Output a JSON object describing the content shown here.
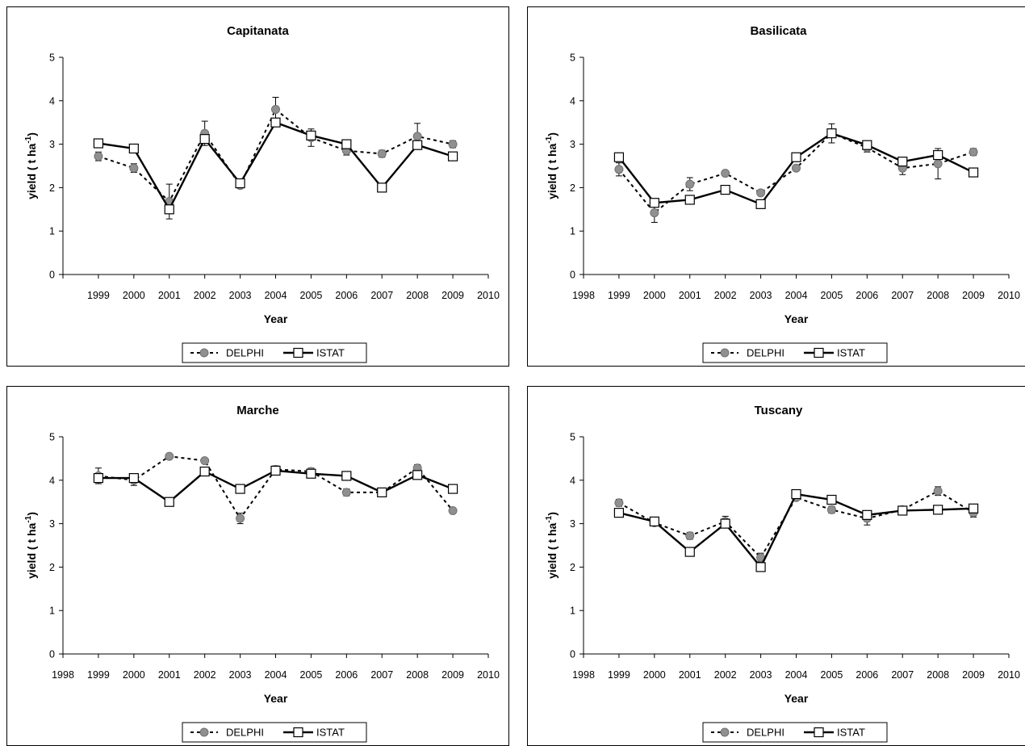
{
  "legend": {
    "delphi": "DELPHI",
    "istat": "ISTAT"
  },
  "chart_data": [
    {
      "type": "line",
      "title": "Capitanata",
      "xlabel": "Year",
      "ylabel": "yield ( t ha",
      "ylabel_sup": "-1",
      "ylabel_end": ")",
      "xlim": [
        1998,
        2010
      ],
      "ylim": [
        0,
        5
      ],
      "xticks": [
        1999,
        2000,
        2001,
        2002,
        2003,
        2004,
        2005,
        2006,
        2007,
        2008,
        2009,
        2010
      ],
      "yticks": [
        0,
        1,
        2,
        3,
        4,
        5
      ],
      "x": [
        1999,
        2000,
        2001,
        2002,
        2003,
        2004,
        2005,
        2006,
        2007,
        2008,
        2009
      ],
      "legend_position": "bottom",
      "grid": false,
      "series": [
        {
          "name": "DELPHI",
          "style": "dashed",
          "marker": "circle",
          "color": "#909090",
          "values": [
            2.72,
            2.45,
            1.68,
            3.25,
            2.05,
            3.8,
            3.15,
            2.85,
            2.78,
            3.18,
            3.0
          ],
          "err": [
            0.1,
            0.1,
            0.4,
            0.28,
            0.06,
            0.28,
            0.2,
            0.1,
            0.08,
            0.3,
            0.08
          ]
        },
        {
          "name": "ISTAT",
          "style": "solid",
          "marker": "square",
          "color": "#ffffff",
          "values": [
            3.02,
            2.9,
            1.5,
            3.12,
            2.1,
            3.5,
            3.2,
            3.0,
            2.0,
            2.98,
            2.72
          ]
        }
      ]
    },
    {
      "type": "line",
      "title": "Basilicata",
      "xlabel": "Year",
      "ylabel": "yield ( t ha",
      "ylabel_sup": "-1",
      "ylabel_end": ")",
      "xlim": [
        1998,
        2010
      ],
      "ylim": [
        0,
        5
      ],
      "xticks": [
        1998,
        1999,
        2000,
        2001,
        2002,
        2003,
        2004,
        2005,
        2006,
        2007,
        2008,
        2009,
        2010
      ],
      "yticks": [
        0,
        1,
        2,
        3,
        4,
        5
      ],
      "x": [
        1999,
        2000,
        2001,
        2002,
        2003,
        2004,
        2005,
        2006,
        2007,
        2008,
        2009
      ],
      "legend_position": "bottom",
      "grid": false,
      "series": [
        {
          "name": "DELPHI",
          "style": "dashed",
          "marker": "circle",
          "color": "#909090",
          "values": [
            2.42,
            1.42,
            2.08,
            2.33,
            1.88,
            2.45,
            3.25,
            2.92,
            2.45,
            2.55,
            2.82
          ],
          "err": [
            0.15,
            0.22,
            0.15,
            0.06,
            0.06,
            0.06,
            0.22,
            0.1,
            0.15,
            0.35,
            0.08
          ]
        },
        {
          "name": "ISTAT",
          "style": "solid",
          "marker": "square",
          "color": "#ffffff",
          "values": [
            2.7,
            1.65,
            1.72,
            1.95,
            1.62,
            2.7,
            3.25,
            2.98,
            2.6,
            2.75,
            2.35
          ]
        }
      ]
    },
    {
      "type": "line",
      "title": "Marche",
      "xlabel": "Year",
      "ylabel": "yield ( t ha",
      "ylabel_sup": "-1",
      "ylabel_end": ")",
      "xlim": [
        1998,
        2010
      ],
      "ylim": [
        0,
        5
      ],
      "xticks": [
        1998,
        1999,
        2000,
        2001,
        2002,
        2003,
        2004,
        2005,
        2006,
        2007,
        2008,
        2009,
        2010
      ],
      "yticks": [
        0,
        1,
        2,
        3,
        4,
        5
      ],
      "x": [
        1999,
        2000,
        2001,
        2002,
        2003,
        2004,
        2005,
        2006,
        2007,
        2008,
        2009
      ],
      "legend_position": "bottom",
      "grid": false,
      "series": [
        {
          "name": "DELPHI",
          "style": "dashed",
          "marker": "circle",
          "color": "#909090",
          "values": [
            4.1,
            4.0,
            4.55,
            4.45,
            3.12,
            4.25,
            4.2,
            3.72,
            3.72,
            4.28,
            3.3
          ],
          "err": [
            0.18,
            0.12,
            0.05,
            0.05,
            0.12,
            0.08,
            0.08,
            0.08,
            0.06,
            0.08,
            0.06
          ]
        },
        {
          "name": "ISTAT",
          "style": "solid",
          "marker": "square",
          "color": "#ffffff",
          "values": [
            4.05,
            4.05,
            3.5,
            4.2,
            3.8,
            4.22,
            4.15,
            4.1,
            3.72,
            4.12,
            3.8
          ]
        }
      ]
    },
    {
      "type": "line",
      "title": "Tuscany",
      "xlabel": "Year",
      "ylabel": "yield ( t ha",
      "ylabel_sup": "-1",
      "ylabel_end": ")",
      "xlim": [
        1998,
        2010
      ],
      "ylim": [
        0,
        5
      ],
      "xticks": [
        1998,
        1999,
        2000,
        2001,
        2002,
        2003,
        2004,
        2005,
        2006,
        2007,
        2008,
        2009,
        2010
      ],
      "yticks": [
        0,
        1,
        2,
        3,
        4,
        5
      ],
      "x": [
        1999,
        2000,
        2001,
        2002,
        2003,
        2004,
        2005,
        2006,
        2007,
        2008,
        2009
      ],
      "legend_position": "bottom",
      "grid": false,
      "series": [
        {
          "name": "DELPHI",
          "style": "dashed",
          "marker": "circle",
          "color": "#909090",
          "values": [
            3.48,
            3.02,
            2.72,
            3.05,
            2.22,
            3.6,
            3.32,
            3.12,
            3.32,
            3.75,
            3.25
          ],
          "err": [
            0.08,
            0.06,
            0.08,
            0.12,
            0.1,
            0.06,
            0.08,
            0.15,
            0.08,
            0.1,
            0.1
          ]
        },
        {
          "name": "ISTAT",
          "style": "solid",
          "marker": "square",
          "color": "#ffffff",
          "values": [
            3.25,
            3.05,
            2.35,
            3.0,
            2.0,
            3.68,
            3.55,
            3.2,
            3.3,
            3.32,
            3.35
          ]
        }
      ]
    }
  ]
}
